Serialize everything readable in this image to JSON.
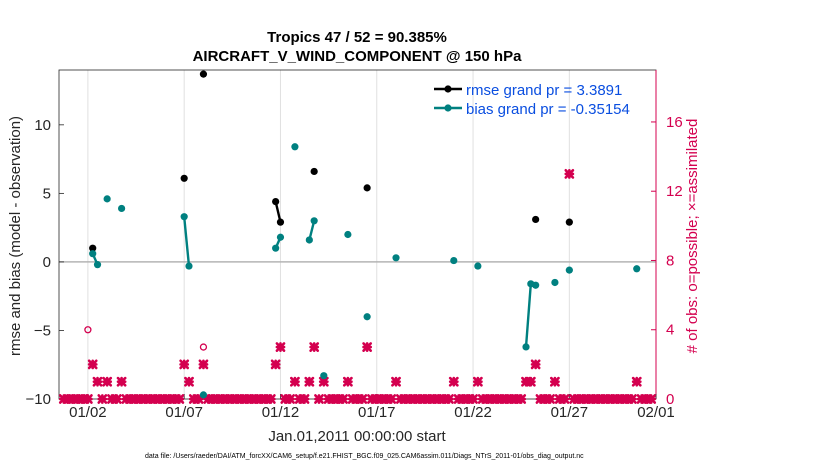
{
  "chart_data": {
    "type": "line",
    "title": "Tropics 47 / 52 = 90.385%",
    "subtitle": "AIRCRAFT_V_WIND_COMPONENT @ 150 hPa",
    "xlabel": "Jan.01,2011 00:00:00 start",
    "ylabel": "rmse and bias (model - observation)",
    "y2label": "# of obs: o=possible; ×=assimilated",
    "footnote": "data file: /Users/raeder/DAI/ATM_forcXX/CAM6_setup/f.e21.FHIST_BGC.f09_025.CAM6assim.011/Diags_NTrS_2011-01/obs_diag_output.nc",
    "xlim": [
      0.5,
      31.5
    ],
    "ylim": [
      -10,
      14
    ],
    "y2lim": [
      0,
      19
    ],
    "grid": true,
    "zero_line": 0,
    "x_ticks": [
      {
        "v": 2,
        "label": "01/02"
      },
      {
        "v": 7,
        "label": "01/07"
      },
      {
        "v": 12,
        "label": "01/12"
      },
      {
        "v": 17,
        "label": "01/17"
      },
      {
        "v": 22,
        "label": "01/22"
      },
      {
        "v": 27,
        "label": "01/27"
      },
      {
        "v": 32,
        "label": "02/01"
      }
    ],
    "y_ticks": [
      {
        "v": -10,
        "label": "−10"
      },
      {
        "v": -5,
        "label": "−5"
      },
      {
        "v": 0,
        "label": "0"
      },
      {
        "v": 5,
        "label": "5"
      },
      {
        "v": 10,
        "label": "10"
      }
    ],
    "y2_ticks": [
      {
        "v": 0,
        "label": "0"
      },
      {
        "v": 4,
        "label": "4"
      },
      {
        "v": 8,
        "label": "8"
      },
      {
        "v": 12,
        "label": "12"
      },
      {
        "v": 16,
        "label": "16"
      }
    ],
    "legend_position": "top-right",
    "series": [
      {
        "name": "rmse grand pr = 3.3891",
        "color": "#000000",
        "axis": "left",
        "segments": [
          [
            [
              2.25,
              1.0
            ]
          ],
          [
            [
              7.0,
              6.1
            ]
          ],
          [
            [
              8.0,
              13.7
            ]
          ],
          [
            [
              11.75,
              4.4
            ],
            [
              12.0,
              2.9
            ]
          ],
          [
            [
              13.75,
              6.6
            ]
          ],
          [
            [
              16.5,
              5.4
            ]
          ],
          [
            [
              25.25,
              3.1
            ]
          ],
          [
            [
              27.0,
              2.9
            ]
          ]
        ]
      },
      {
        "name": "bias grand pr = -0.35154",
        "color": "#008080",
        "axis": "left",
        "segments": [
          [
            [
              2.25,
              0.6
            ],
            [
              2.5,
              -0.2
            ]
          ],
          [
            [
              3.0,
              4.6
            ]
          ],
          [
            [
              3.75,
              3.9
            ]
          ],
          [
            [
              7.0,
              3.3
            ],
            [
              7.25,
              -0.3
            ]
          ],
          [
            [
              8.0,
              -9.7
            ]
          ],
          [
            [
              11.75,
              1.0
            ],
            [
              12.0,
              1.8
            ]
          ],
          [
            [
              12.75,
              8.4
            ]
          ],
          [
            [
              13.5,
              1.6
            ],
            [
              13.75,
              3.0
            ]
          ],
          [
            [
              14.25,
              -8.3
            ]
          ],
          [
            [
              15.5,
              2.0
            ]
          ],
          [
            [
              16.5,
              -4.0
            ]
          ],
          [
            [
              18.0,
              0.3
            ]
          ],
          [
            [
              21.0,
              0.1
            ]
          ],
          [
            [
              22.25,
              -0.3
            ]
          ],
          [
            [
              24.75,
              -6.2
            ],
            [
              25.0,
              -1.6
            ],
            [
              25.25,
              -1.7
            ]
          ],
          [
            [
              26.25,
              -1.5
            ]
          ],
          [
            [
              27.0,
              -0.6
            ]
          ],
          [
            [
              30.5,
              -0.5
            ]
          ]
        ]
      }
    ],
    "obs_possible": [
      {
        "x": 2.0,
        "n": 4
      },
      {
        "x": 8.0,
        "n": 3
      }
    ],
    "obs_assimilated": [
      {
        "x": 0.75,
        "n": 0
      },
      {
        "x": 1.0,
        "n": 0
      },
      {
        "x": 1.25,
        "n": 0
      },
      {
        "x": 1.5,
        "n": 0
      },
      {
        "x": 1.75,
        "n": 0
      },
      {
        "x": 2.0,
        "n": 0
      },
      {
        "x": 2.25,
        "n": 2
      },
      {
        "x": 2.5,
        "n": 1
      },
      {
        "x": 2.75,
        "n": 0
      },
      {
        "x": 3.0,
        "n": 1
      },
      {
        "x": 3.25,
        "n": 0
      },
      {
        "x": 3.5,
        "n": 0
      },
      {
        "x": 3.75,
        "n": 1
      },
      {
        "x": 4.0,
        "n": 0
      },
      {
        "x": 4.25,
        "n": 0
      },
      {
        "x": 4.5,
        "n": 0
      },
      {
        "x": 4.75,
        "n": 0
      },
      {
        "x": 5.0,
        "n": 0
      },
      {
        "x": 5.25,
        "n": 0
      },
      {
        "x": 5.5,
        "n": 0
      },
      {
        "x": 5.75,
        "n": 0
      },
      {
        "x": 6.0,
        "n": 0
      },
      {
        "x": 6.25,
        "n": 0
      },
      {
        "x": 6.5,
        "n": 0
      },
      {
        "x": 6.75,
        "n": 0
      },
      {
        "x": 7.0,
        "n": 2
      },
      {
        "x": 7.25,
        "n": 1
      },
      {
        "x": 7.5,
        "n": 0
      },
      {
        "x": 7.75,
        "n": 0
      },
      {
        "x": 8.0,
        "n": 2
      },
      {
        "x": 8.25,
        "n": 0
      },
      {
        "x": 8.5,
        "n": 0
      },
      {
        "x": 8.75,
        "n": 0
      },
      {
        "x": 9.0,
        "n": 0
      },
      {
        "x": 9.25,
        "n": 0
      },
      {
        "x": 9.5,
        "n": 0
      },
      {
        "x": 9.75,
        "n": 0
      },
      {
        "x": 10.0,
        "n": 0
      },
      {
        "x": 10.25,
        "n": 0
      },
      {
        "x": 10.5,
        "n": 0
      },
      {
        "x": 10.75,
        "n": 0
      },
      {
        "x": 11.0,
        "n": 0
      },
      {
        "x": 11.25,
        "n": 0
      },
      {
        "x": 11.5,
        "n": 0
      },
      {
        "x": 11.75,
        "n": 2
      },
      {
        "x": 12.0,
        "n": 3
      },
      {
        "x": 12.25,
        "n": 0
      },
      {
        "x": 12.5,
        "n": 0
      },
      {
        "x": 12.75,
        "n": 1
      },
      {
        "x": 13.0,
        "n": 0
      },
      {
        "x": 13.25,
        "n": 0
      },
      {
        "x": 13.5,
        "n": 1
      },
      {
        "x": 13.75,
        "n": 3
      },
      {
        "x": 14.0,
        "n": 0
      },
      {
        "x": 14.25,
        "n": 1
      },
      {
        "x": 14.5,
        "n": 0
      },
      {
        "x": 14.75,
        "n": 0
      },
      {
        "x": 15.0,
        "n": 0
      },
      {
        "x": 15.25,
        "n": 0
      },
      {
        "x": 15.5,
        "n": 1
      },
      {
        "x": 15.75,
        "n": 0
      },
      {
        "x": 16.0,
        "n": 0
      },
      {
        "x": 16.25,
        "n": 0
      },
      {
        "x": 16.5,
        "n": 3
      },
      {
        "x": 16.75,
        "n": 0
      },
      {
        "x": 17.0,
        "n": 0
      },
      {
        "x": 17.25,
        "n": 0
      },
      {
        "x": 17.5,
        "n": 0
      },
      {
        "x": 17.75,
        "n": 0
      },
      {
        "x": 18.0,
        "n": 1
      },
      {
        "x": 18.25,
        "n": 0
      },
      {
        "x": 18.5,
        "n": 0
      },
      {
        "x": 18.75,
        "n": 0
      },
      {
        "x": 19.0,
        "n": 0
      },
      {
        "x": 19.25,
        "n": 0
      },
      {
        "x": 19.5,
        "n": 0
      },
      {
        "x": 19.75,
        "n": 0
      },
      {
        "x": 20.0,
        "n": 0
      },
      {
        "x": 20.25,
        "n": 0
      },
      {
        "x": 20.5,
        "n": 0
      },
      {
        "x": 20.75,
        "n": 0
      },
      {
        "x": 21.0,
        "n": 1
      },
      {
        "x": 21.25,
        "n": 0
      },
      {
        "x": 21.5,
        "n": 0
      },
      {
        "x": 21.75,
        "n": 0
      },
      {
        "x": 22.0,
        "n": 0
      },
      {
        "x": 22.25,
        "n": 1
      },
      {
        "x": 22.5,
        "n": 0
      },
      {
        "x": 22.75,
        "n": 0
      },
      {
        "x": 23.0,
        "n": 0
      },
      {
        "x": 23.25,
        "n": 0
      },
      {
        "x": 23.5,
        "n": 0
      },
      {
        "x": 23.75,
        "n": 0
      },
      {
        "x": 24.0,
        "n": 0
      },
      {
        "x": 24.25,
        "n": 0
      },
      {
        "x": 24.5,
        "n": 0
      },
      {
        "x": 24.75,
        "n": 1
      },
      {
        "x": 25.0,
        "n": 1
      },
      {
        "x": 25.25,
        "n": 2
      },
      {
        "x": 25.5,
        "n": 0
      },
      {
        "x": 25.75,
        "n": 0
      },
      {
        "x": 26.0,
        "n": 0
      },
      {
        "x": 26.25,
        "n": 1
      },
      {
        "x": 26.5,
        "n": 0
      },
      {
        "x": 26.75,
        "n": 0
      },
      {
        "x": 27.0,
        "n": 13
      },
      {
        "x": 27.25,
        "n": 0
      },
      {
        "x": 27.5,
        "n": 0
      },
      {
        "x": 27.75,
        "n": 0
      },
      {
        "x": 28.0,
        "n": 0
      },
      {
        "x": 28.25,
        "n": 0
      },
      {
        "x": 28.5,
        "n": 0
      },
      {
        "x": 28.75,
        "n": 0
      },
      {
        "x": 29.0,
        "n": 0
      },
      {
        "x": 29.25,
        "n": 0
      },
      {
        "x": 29.5,
        "n": 0
      },
      {
        "x": 29.75,
        "n": 0
      },
      {
        "x": 30.0,
        "n": 0
      },
      {
        "x": 30.25,
        "n": 0
      },
      {
        "x": 30.5,
        "n": 1
      },
      {
        "x": 30.75,
        "n": 0
      },
      {
        "x": 31.0,
        "n": 0
      },
      {
        "x": 31.25,
        "n": 0
      }
    ],
    "colors": {
      "rmse": "#000000",
      "bias": "#008080",
      "obs": "#d4004f",
      "axis_left": "#262626",
      "grid": "#e0e0e0",
      "zero": "#b4b4b4",
      "legend_text": "#0a4ee0"
    }
  }
}
